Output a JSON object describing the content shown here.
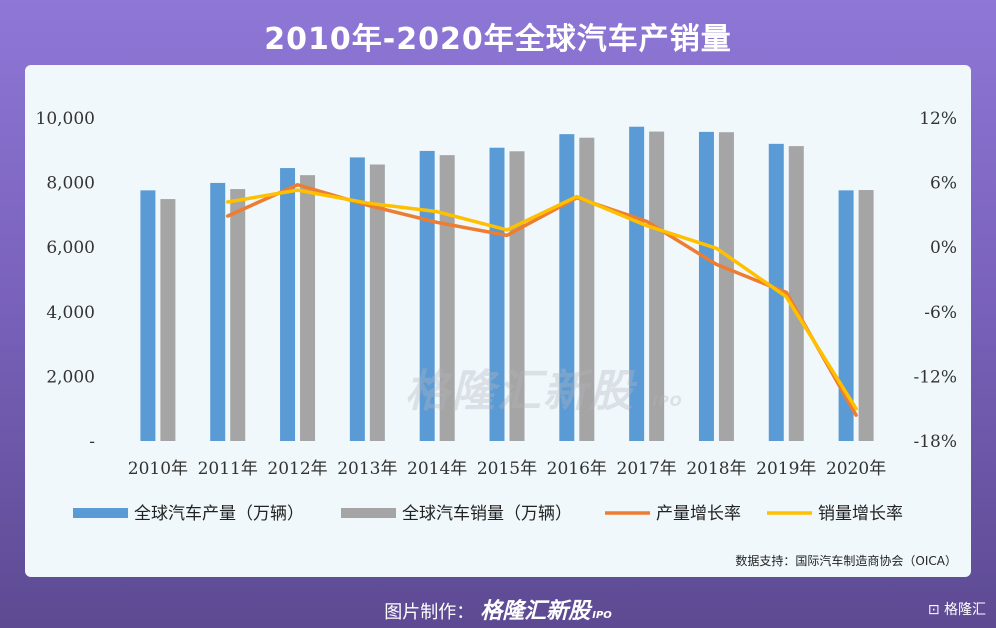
{
  "title": "2010年-2020年全球汽车产销量",
  "watermark": {
    "main": "格隆汇新股",
    "sub": "IPO"
  },
  "source": "数据支持：国际汽车制造商协会（OICA）",
  "footer": {
    "label": "图片制作：",
    "brand": "格隆汇新股",
    "sub": "IPO"
  },
  "corner_logo": "格隆汇",
  "colors": {
    "production": "#5b9bd5",
    "sales": "#a5a5a5",
    "production_growth": "#ed7d31",
    "sales_growth": "#ffc000"
  },
  "chart_data": {
    "type": "bar",
    "categories": [
      "2010年",
      "2011年",
      "2012年",
      "2013年",
      "2014年",
      "2015年",
      "2016年",
      "2017年",
      "2018年",
      "2019年",
      "2020年"
    ],
    "series": [
      {
        "name": "全球汽车产量（万辆）",
        "type": "bar",
        "axis": "left",
        "values": [
          7760,
          7990,
          8450,
          8780,
          8980,
          9080,
          9500,
          9730,
          9570,
          9200,
          7760
        ]
      },
      {
        "name": "全球汽车销量（万辆）",
        "type": "bar",
        "axis": "left",
        "values": [
          7490,
          7800,
          8230,
          8560,
          8850,
          8970,
          9390,
          9580,
          9560,
          9130,
          7770
        ]
      },
      {
        "name": "产量增长率",
        "type": "line",
        "axis": "right",
        "values": [
          null,
          2.9,
          5.8,
          3.9,
          2.3,
          1.1,
          4.6,
          2.4,
          -1.6,
          -4.2,
          -15.6
        ]
      },
      {
        "name": "销量增长率",
        "type": "line",
        "axis": "right",
        "values": [
          null,
          4.2,
          5.3,
          4.1,
          3.3,
          1.6,
          4.7,
          2.0,
          -0.1,
          -4.6,
          -15.0
        ]
      }
    ],
    "left_axis": {
      "ticks": [
        "-",
        "2,000",
        "4,000",
        "6,000",
        "8,000",
        "10,000"
      ],
      "ylim": [
        0,
        10000
      ]
    },
    "right_axis": {
      "ticks": [
        "-18%",
        "-12%",
        "-6%",
        "0%",
        "6%",
        "12%"
      ],
      "ylim": [
        -18,
        12
      ]
    },
    "grid": false,
    "legend_position": "bottom"
  }
}
